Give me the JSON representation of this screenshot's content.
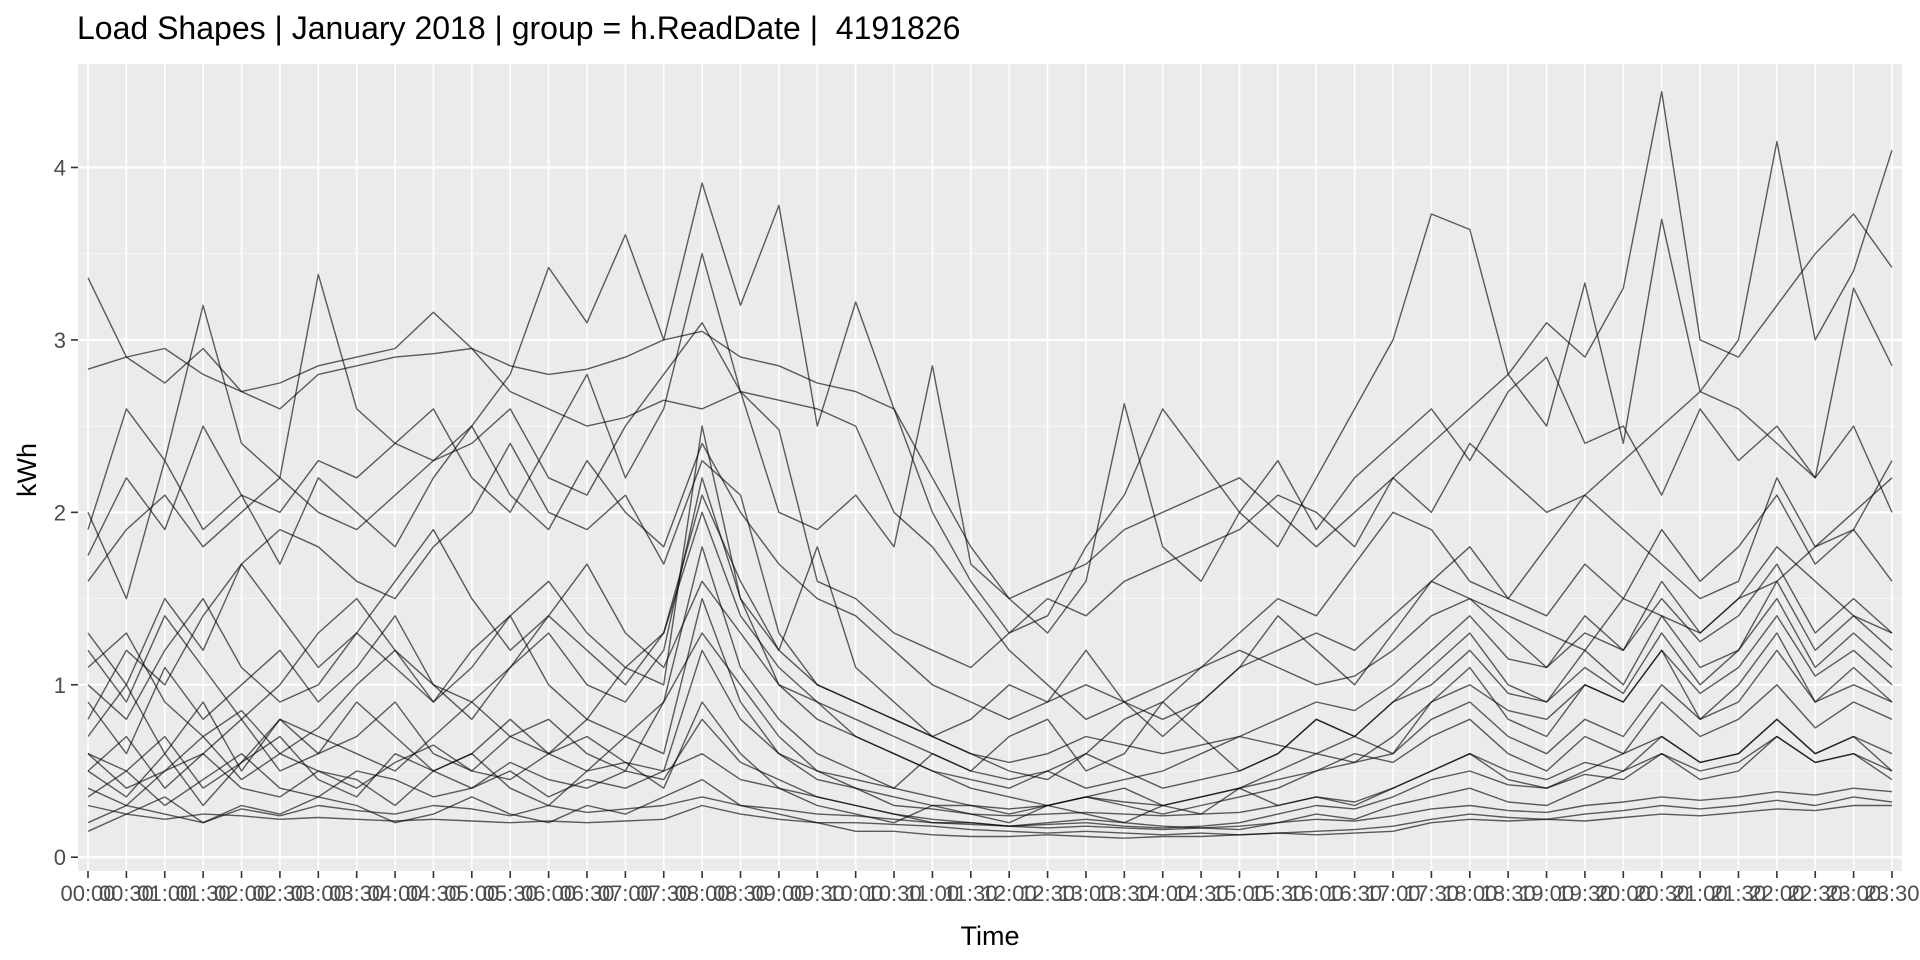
{
  "chart_data": {
    "type": "line",
    "title": "Load Shapes | January 2018 | group = h.ReadDate |  4191826",
    "xlabel": "Time",
    "ylabel": "kWh",
    "ylim": [
      -0.08,
      4.6
    ],
    "yticks": [
      0,
      1,
      2,
      3,
      4
    ],
    "x": [
      "00:00",
      "00:30",
      "01:00",
      "01:30",
      "02:00",
      "02:30",
      "03:00",
      "03:30",
      "04:00",
      "04:30",
      "05:00",
      "05:30",
      "06:00",
      "06:30",
      "07:00",
      "07:30",
      "08:00",
      "08:30",
      "09:00",
      "09:30",
      "10:00",
      "10:30",
      "11:00",
      "11:30",
      "12:00",
      "12:30",
      "13:00",
      "13:30",
      "14:00",
      "14:30",
      "15:00",
      "15:30",
      "16:00",
      "16:30",
      "17:00",
      "17:30",
      "18:00",
      "18:30",
      "19:00",
      "19:30",
      "20:00",
      "20:30",
      "21:00",
      "21:30",
      "22:00",
      "22:30",
      "23:00",
      "23:30"
    ],
    "grid": true,
    "line_color": "#000000",
    "panel_color": "#EBEBEB",
    "series": [
      {
        "values": [
          3.36,
          2.9,
          2.75,
          2.95,
          2.7,
          2.6,
          2.8,
          2.85,
          2.9,
          2.92,
          2.95,
          2.7,
          2.6,
          2.5,
          2.55,
          2.65,
          2.6,
          2.7,
          2.65,
          2.6,
          2.5,
          2.0,
          1.8,
          1.5,
          1.2,
          1.0,
          0.8,
          0.9,
          1.0,
          1.1,
          1.2,
          1.1,
          1.0,
          1.05,
          1.2,
          1.4,
          1.5,
          1.4,
          1.3,
          1.2,
          1.5,
          1.4,
          1.3,
          1.5,
          1.6,
          1.8,
          2.0,
          2.2
        ]
      },
      {
        "values": [
          2.83,
          2.9,
          2.95,
          2.8,
          2.7,
          2.75,
          2.85,
          2.9,
          2.95,
          3.16,
          2.95,
          2.85,
          2.8,
          2.83,
          2.9,
          3.0,
          3.05,
          2.9,
          2.85,
          2.75,
          2.7,
          2.6,
          2.2,
          1.8,
          1.5,
          1.6,
          1.7,
          1.9,
          2.0,
          2.1,
          2.2,
          2.0,
          1.8,
          2.0,
          2.2,
          2.4,
          2.6,
          2.8,
          3.1,
          2.9,
          3.3,
          4.44,
          3.0,
          2.9,
          3.2,
          3.5,
          3.73,
          3.42
        ]
      },
      {
        "values": [
          1.9,
          2.6,
          2.3,
          3.2,
          2.4,
          2.2,
          3.38,
          2.6,
          2.4,
          2.3,
          2.5,
          2.8,
          3.42,
          3.1,
          3.61,
          3.0,
          3.91,
          3.2,
          3.78,
          2.5,
          3.22,
          2.6,
          2.0,
          1.6,
          1.3,
          1.4,
          1.8,
          2.1,
          2.6,
          2.3,
          2.0,
          1.8,
          2.2,
          2.6,
          3.0,
          3.73,
          3.64,
          2.8,
          2.5,
          3.33,
          2.4,
          3.7,
          2.7,
          3.0,
          4.15,
          3.0,
          3.4,
          4.1
        ]
      },
      {
        "values": [
          1.75,
          2.2,
          1.9,
          2.5,
          2.1,
          2.0,
          2.3,
          2.2,
          2.4,
          2.6,
          2.2,
          2.0,
          2.4,
          2.8,
          2.2,
          2.6,
          3.5,
          2.7,
          2.0,
          1.9,
          2.1,
          1.8,
          2.85,
          1.7,
          1.5,
          1.3,
          1.6,
          2.63,
          1.8,
          1.6,
          2.0,
          2.3,
          1.9,
          2.2,
          2.4,
          2.6,
          2.3,
          2.7,
          2.9,
          2.4,
          2.5,
          2.1,
          2.6,
          2.3,
          2.5,
          2.2,
          3.3,
          2.85
        ]
      },
      {
        "values": [
          1.6,
          1.9,
          2.1,
          1.8,
          2.0,
          2.2,
          2.0,
          1.9,
          2.1,
          2.3,
          2.4,
          2.6,
          2.2,
          2.1,
          2.5,
          2.8,
          3.1,
          2.7,
          2.48,
          1.6,
          1.5,
          1.3,
          1.2,
          1.1,
          1.3,
          1.5,
          1.4,
          1.6,
          1.7,
          1.8,
          1.9,
          2.1,
          2.0,
          1.8,
          2.2,
          2.0,
          2.4,
          2.2,
          2.0,
          2.1,
          2.3,
          2.5,
          2.7,
          2.6,
          2.4,
          2.2,
          2.5,
          2.0
        ]
      },
      {
        "values": [
          0.8,
          1.2,
          1.0,
          1.4,
          1.7,
          1.9,
          1.8,
          1.6,
          1.5,
          1.8,
          2.0,
          2.4,
          2.0,
          1.9,
          2.1,
          1.7,
          2.3,
          2.1,
          1.3,
          1.0,
          0.9,
          0.8,
          0.7,
          0.6,
          0.5,
          0.45,
          0.6,
          0.8,
          0.9,
          1.1,
          1.3,
          1.5,
          1.4,
          1.7,
          2.0,
          1.9,
          1.6,
          1.5,
          1.8,
          2.1,
          1.9,
          1.7,
          1.5,
          1.6,
          2.2,
          1.8,
          1.9,
          2.3
        ]
      },
      {
        "values": [
          1.1,
          1.3,
          0.9,
          0.7,
          0.85,
          0.6,
          0.75,
          1.0,
          1.2,
          0.9,
          1.1,
          1.4,
          1.6,
          1.3,
          1.1,
          1.0,
          2.5,
          1.5,
          1.2,
          1.8,
          1.1,
          0.9,
          0.7,
          0.8,
          1.0,
          0.9,
          1.2,
          0.9,
          0.7,
          0.9,
          1.1,
          1.4,
          1.2,
          1.0,
          1.3,
          1.6,
          1.5,
          1.3,
          1.1,
          1.4,
          1.2,
          1.6,
          1.3,
          1.5,
          1.8,
          1.6,
          1.4,
          1.2
        ]
      },
      {
        "values": [
          0.6,
          0.5,
          0.7,
          0.4,
          0.55,
          0.8,
          0.6,
          0.7,
          0.9,
          0.6,
          0.5,
          0.7,
          0.8,
          0.6,
          0.5,
          0.9,
          1.3,
          1.0,
          0.7,
          0.5,
          0.45,
          0.4,
          0.6,
          0.5,
          0.7,
          0.8,
          0.5,
          0.6,
          0.9,
          0.7,
          0.5,
          0.6,
          0.8,
          0.7,
          0.6,
          0.9,
          1.1,
          0.8,
          0.7,
          1.0,
          0.9,
          1.2,
          0.8,
          1.0,
          1.3,
          0.9,
          1.1,
          0.9
        ]
      },
      {
        "values": [
          0.4,
          0.3,
          0.5,
          0.6,
          0.4,
          0.35,
          0.5,
          0.45,
          0.3,
          0.5,
          0.6,
          0.4,
          0.3,
          0.5,
          0.55,
          0.4,
          0.9,
          0.6,
          0.4,
          0.3,
          0.25,
          0.2,
          0.3,
          0.25,
          0.2,
          0.3,
          0.25,
          0.2,
          0.3,
          0.25,
          0.4,
          0.3,
          0.35,
          0.3,
          0.4,
          0.5,
          0.6,
          0.45,
          0.4,
          0.5,
          0.6,
          0.7,
          0.55,
          0.6,
          0.8,
          0.6,
          0.7,
          0.5
        ]
      },
      {
        "values": [
          0.3,
          0.25,
          0.22,
          0.25,
          0.24,
          0.22,
          0.23,
          0.22,
          0.21,
          0.22,
          0.21,
          0.2,
          0.21,
          0.2,
          0.21,
          0.22,
          0.3,
          0.25,
          0.22,
          0.2,
          0.2,
          0.19,
          0.18,
          0.16,
          0.15,
          0.14,
          0.15,
          0.14,
          0.13,
          0.14,
          0.13,
          0.14,
          0.13,
          0.14,
          0.15,
          0.2,
          0.22,
          0.21,
          0.22,
          0.21,
          0.23,
          0.25,
          0.24,
          0.26,
          0.28,
          0.27,
          0.3,
          0.3
        ]
      },
      {
        "values": [
          0.5,
          0.35,
          0.6,
          0.3,
          0.55,
          0.7,
          0.45,
          0.35,
          0.6,
          0.5,
          0.4,
          0.5,
          0.35,
          0.45,
          0.4,
          0.5,
          0.6,
          0.45,
          0.4,
          0.35,
          0.3,
          0.25,
          0.22,
          0.2,
          0.18,
          0.2,
          0.22,
          0.2,
          0.18,
          0.17,
          0.16,
          0.2,
          0.25,
          0.22,
          0.3,
          0.35,
          0.4,
          0.32,
          0.3,
          0.4,
          0.5,
          0.6,
          0.45,
          0.5,
          0.7,
          0.55,
          0.6,
          0.45
        ]
      },
      {
        "values": [
          0.7,
          1.0,
          0.6,
          0.9,
          0.5,
          0.8,
          0.7,
          0.6,
          0.5,
          0.7,
          0.9,
          0.7,
          0.6,
          0.8,
          0.7,
          0.6,
          1.5,
          0.9,
          0.6,
          0.5,
          0.4,
          0.35,
          0.3,
          0.3,
          0.25,
          0.3,
          0.35,
          0.3,
          0.25,
          0.3,
          0.35,
          0.4,
          0.5,
          0.6,
          0.55,
          0.7,
          0.8,
          0.6,
          0.5,
          0.7,
          0.6,
          0.9,
          0.7,
          0.8,
          1.0,
          0.75,
          0.9,
          0.8
        ]
      },
      {
        "values": [
          0.9,
          0.6,
          1.1,
          0.8,
          1.0,
          1.2,
          0.9,
          1.1,
          1.4,
          1.0,
          0.8,
          1.1,
          1.3,
          1.0,
          0.9,
          1.2,
          2.2,
          1.5,
          1.0,
          0.8,
          0.7,
          0.6,
          0.5,
          0.45,
          0.4,
          0.5,
          0.6,
          0.5,
          0.4,
          0.45,
          0.5,
          0.6,
          0.8,
          0.7,
          0.9,
          1.1,
          1.3,
          1.0,
          0.9,
          1.2,
          1.0,
          1.4,
          1.1,
          1.2,
          1.6,
          1.2,
          1.4,
          1.3
        ]
      },
      {
        "values": [
          0.5,
          0.7,
          0.4,
          0.6,
          0.8,
          0.5,
          0.6,
          0.9,
          0.7,
          0.5,
          0.6,
          0.8,
          0.6,
          0.5,
          0.7,
          0.9,
          1.8,
          1.1,
          0.8,
          0.6,
          0.5,
          0.4,
          0.35,
          0.3,
          0.28,
          0.3,
          0.35,
          0.32,
          0.3,
          0.35,
          0.4,
          0.45,
          0.5,
          0.55,
          0.6,
          0.8,
          0.9,
          0.7,
          0.6,
          0.8,
          0.7,
          1.0,
          0.8,
          0.9,
          1.2,
          0.9,
          1.0,
          0.9
        ]
      },
      {
        "values": [
          1.3,
          1.0,
          1.5,
          1.2,
          1.7,
          1.4,
          1.1,
          1.3,
          1.6,
          1.9,
          1.5,
          1.2,
          1.4,
          1.7,
          1.3,
          1.1,
          1.6,
          1.3,
          1.0,
          0.9,
          0.8,
          0.7,
          0.6,
          0.5,
          0.45,
          0.5,
          0.4,
          0.45,
          0.5,
          0.6,
          0.7,
          0.65,
          0.6,
          0.7,
          0.9,
          1.0,
          1.2,
          0.95,
          0.9,
          1.1,
          0.95,
          1.3,
          1.0,
          1.2,
          1.5,
          1.1,
          1.3,
          1.1
        ]
      },
      {
        "values": [
          0.2,
          0.3,
          0.25,
          0.2,
          0.28,
          0.24,
          0.3,
          0.27,
          0.25,
          0.3,
          0.28,
          0.24,
          0.3,
          0.26,
          0.28,
          0.3,
          0.35,
          0.3,
          0.28,
          0.25,
          0.24,
          0.22,
          0.2,
          0.19,
          0.18,
          0.17,
          0.18,
          0.17,
          0.16,
          0.17,
          0.18,
          0.2,
          0.22,
          0.21,
          0.24,
          0.28,
          0.3,
          0.27,
          0.26,
          0.3,
          0.32,
          0.35,
          0.33,
          0.35,
          0.38,
          0.36,
          0.4,
          0.38
        ]
      },
      {
        "values": [
          0.15,
          0.25,
          0.35,
          0.2,
          0.3,
          0.25,
          0.35,
          0.3,
          0.2,
          0.25,
          0.35,
          0.25,
          0.2,
          0.3,
          0.25,
          0.35,
          0.45,
          0.3,
          0.25,
          0.2,
          0.15,
          0.15,
          0.13,
          0.12,
          0.12,
          0.13,
          0.12,
          0.11,
          0.12,
          0.12,
          0.13,
          0.14,
          0.15,
          0.16,
          0.18,
          0.22,
          0.25,
          0.23,
          0.22,
          0.25,
          0.27,
          0.3,
          0.28,
          0.3,
          0.33,
          0.3,
          0.35,
          0.32
        ]
      },
      {
        "values": [
          1.0,
          0.8,
          1.2,
          1.5,
          1.1,
          0.9,
          1.0,
          1.3,
          1.1,
          0.9,
          1.2,
          1.4,
          1.0,
          0.8,
          1.1,
          1.3,
          2.0,
          1.4,
          1.1,
          0.9,
          0.7,
          0.6,
          0.5,
          0.4,
          0.35,
          0.3,
          0.35,
          0.4,
          0.3,
          0.35,
          0.4,
          0.5,
          0.6,
          0.55,
          0.7,
          0.9,
          1.0,
          0.85,
          0.8,
          1.0,
          0.9,
          1.2,
          0.95,
          1.1,
          1.4,
          1.05,
          1.2,
          1.0
        ]
      },
      {
        "values": [
          0.6,
          0.4,
          0.5,
          0.7,
          0.45,
          0.6,
          0.5,
          0.4,
          0.55,
          0.65,
          0.5,
          0.45,
          0.6,
          0.7,
          0.55,
          0.5,
          1.2,
          0.8,
          0.6,
          0.45,
          0.4,
          0.3,
          0.28,
          0.25,
          0.24,
          0.25,
          0.26,
          0.25,
          0.24,
          0.25,
          0.26,
          0.3,
          0.35,
          0.32,
          0.4,
          0.5,
          0.6,
          0.5,
          0.45,
          0.55,
          0.5,
          0.7,
          0.55,
          0.6,
          0.8,
          0.6,
          0.7,
          0.6
        ]
      },
      {
        "values": [
          0.35,
          0.5,
          0.3,
          0.45,
          0.6,
          0.4,
          0.35,
          0.5,
          0.45,
          0.35,
          0.4,
          0.55,
          0.45,
          0.4,
          0.5,
          0.45,
          0.8,
          0.55,
          0.45,
          0.35,
          0.3,
          0.25,
          0.2,
          0.2,
          0.18,
          0.19,
          0.2,
          0.18,
          0.17,
          0.18,
          0.2,
          0.25,
          0.3,
          0.28,
          0.35,
          0.45,
          0.5,
          0.42,
          0.4,
          0.48,
          0.45,
          0.6,
          0.5,
          0.55,
          0.7,
          0.55,
          0.6,
          0.5
        ]
      },
      {
        "values": [
          2.0,
          1.5,
          2.3,
          1.9,
          2.1,
          1.7,
          2.2,
          2.0,
          1.8,
          2.2,
          2.5,
          2.1,
          1.9,
          2.3,
          2.0,
          1.8,
          2.4,
          2.0,
          1.7,
          1.5,
          1.4,
          1.2,
          1.0,
          0.9,
          0.8,
          0.9,
          1.0,
          0.9,
          0.8,
          0.9,
          1.1,
          1.2,
          1.3,
          1.2,
          1.4,
          1.6,
          1.8,
          1.5,
          1.4,
          1.7,
          1.5,
          1.9,
          1.6,
          1.8,
          2.1,
          1.7,
          1.9,
          1.6
        ]
      },
      {
        "values": [
          1.2,
          0.9,
          1.4,
          1.1,
          0.8,
          1.0,
          1.3,
          1.5,
          1.2,
          1.0,
          0.9,
          1.1,
          1.4,
          1.2,
          1.0,
          1.3,
          2.1,
          1.6,
          1.2,
          1.0,
          0.9,
          0.8,
          0.7,
          0.6,
          0.55,
          0.6,
          0.7,
          0.65,
          0.6,
          0.65,
          0.7,
          0.8,
          0.9,
          0.85,
          1.0,
          1.2,
          1.4,
          1.15,
          1.1,
          1.3,
          1.2,
          1.5,
          1.25,
          1.4,
          1.7,
          1.3,
          1.5,
          1.3
        ]
      }
    ]
  }
}
